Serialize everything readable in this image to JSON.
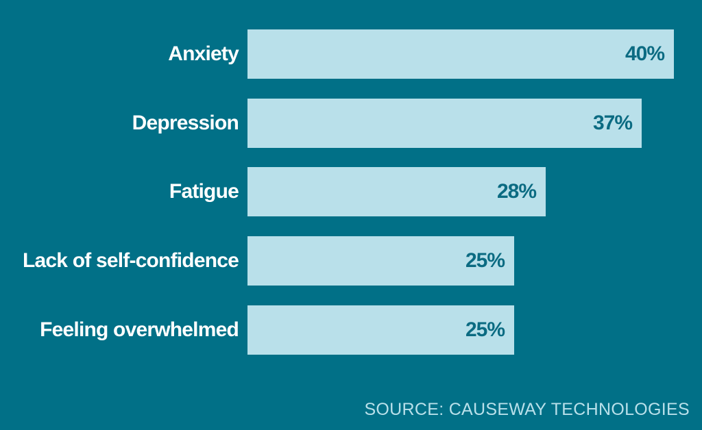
{
  "colors": {
    "background": "#017087",
    "bar": "#b9e0ea",
    "value_text": "#0b6b82",
    "category_text": "#ffffff",
    "source_text": "#b9e0ea"
  },
  "chart_data": {
    "type": "bar",
    "orientation": "horizontal",
    "categories": [
      "Anxiety",
      "Depression",
      "Fatigue",
      "Lack of self-confidence",
      "Feeling overwhelmed"
    ],
    "values": [
      40,
      37,
      28,
      25,
      25
    ],
    "value_labels": [
      "40%",
      "37%",
      "28%",
      "25%",
      "25%"
    ],
    "unit": "%",
    "title": "",
    "xlabel": "",
    "ylabel": "",
    "grid": false,
    "legend": "none"
  },
  "source": "SOURCE: CAUSEWAY TECHNOLOGIES"
}
